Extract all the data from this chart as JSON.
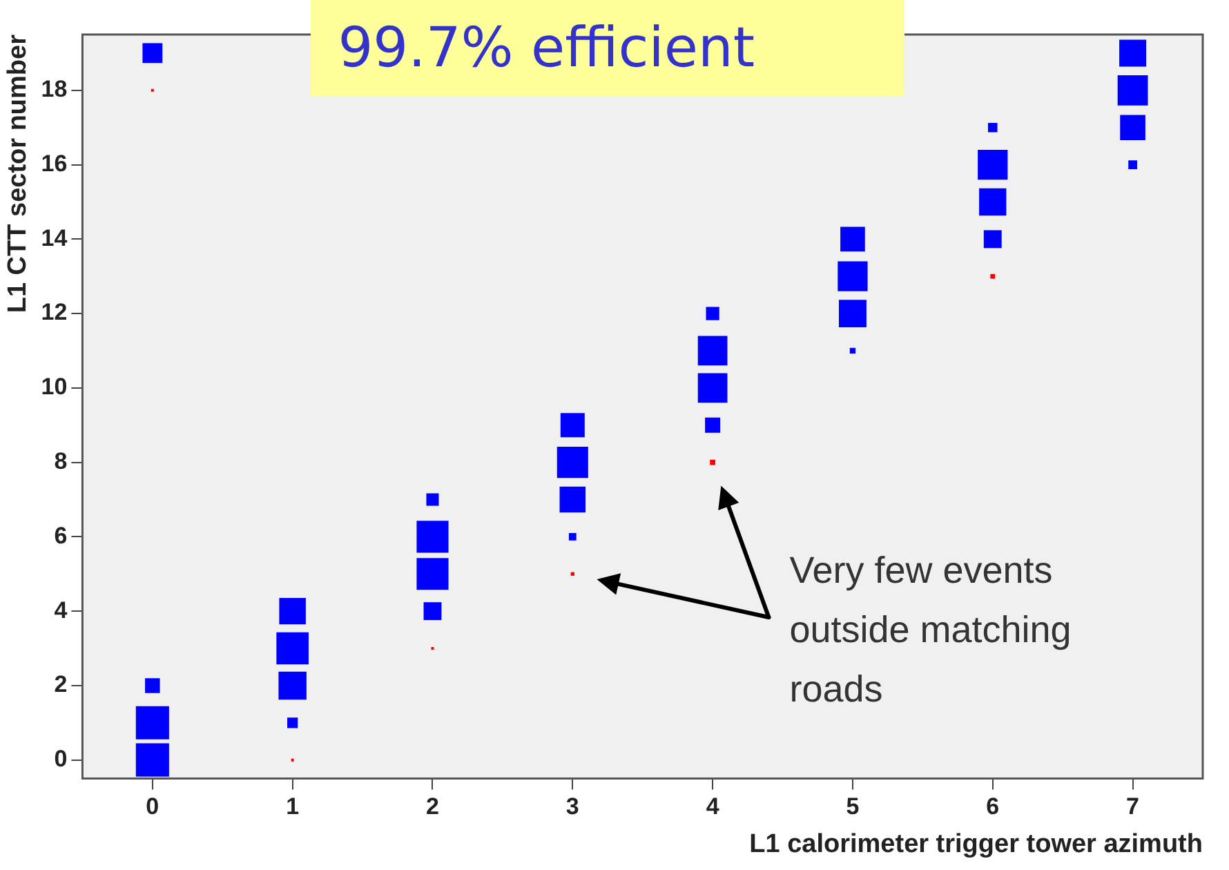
{
  "chart_data": {
    "type": "bubble",
    "marker": "square",
    "xlabel": "L1 calorimeter trigger tower azimuth",
    "ylabel": "L1 CTT sector number",
    "xlim": [
      -0.5,
      7.5
    ],
    "xticks": [
      0,
      1,
      2,
      3,
      4,
      5,
      6,
      7
    ],
    "ylim": [
      -0.5,
      19.5
    ],
    "yticks": [
      0,
      2,
      4,
      6,
      8,
      10,
      12,
      14,
      16,
      18
    ],
    "annotations": [
      "99.7% efficient",
      "Very few events outside matching roads"
    ],
    "series": [
      {
        "color": "#0000ff",
        "x": [
          0,
          0,
          0,
          0,
          1,
          1,
          1,
          1,
          2,
          2,
          2,
          2,
          3,
          3,
          3,
          3,
          4,
          4,
          4,
          4,
          5,
          5,
          5,
          5,
          6,
          6,
          6,
          6,
          7,
          7,
          7,
          7
        ],
        "values": [
          0,
          1,
          2,
          19,
          4,
          3,
          2,
          1,
          7,
          6,
          5,
          4,
          9,
          8,
          7,
          6,
          12,
          11,
          10,
          9,
          14,
          13,
          12,
          11,
          17,
          16,
          15,
          14,
          19,
          18,
          17,
          16
        ],
        "sizes": [
          1,
          1,
          0.2,
          0.36,
          0.64,
          0.94,
          0.71,
          0.1,
          0.14,
          0.92,
          0.92,
          0.29,
          0.53,
          0.88,
          0.61,
          0.05,
          0.16,
          0.79,
          0.79,
          0.21,
          0.55,
          0.81,
          0.69,
          0.03,
          0.08,
          0.81,
          0.67,
          0.29,
          0.66,
          0.83,
          0.58,
          0.07
        ]
      },
      {
        "color": "#ff0000",
        "x": [
          0,
          1,
          2,
          3,
          4,
          6
        ],
        "values": [
          18,
          0,
          3,
          5,
          8,
          13
        ],
        "sizes": [
          0.004,
          0.002,
          0.001,
          0.012,
          0.026,
          0.02
        ]
      }
    ]
  }
}
